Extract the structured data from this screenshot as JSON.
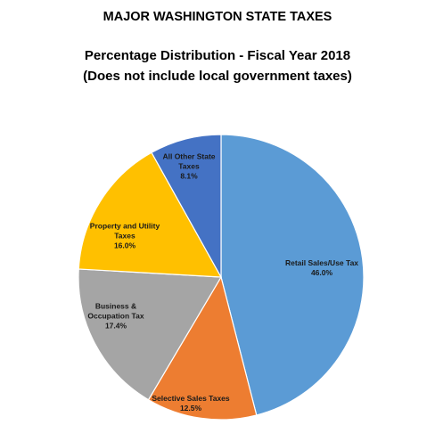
{
  "header": {
    "title": "MAJOR WASHINGTON STATE TAXES",
    "subtitle_line1": "Percentage Distribution - Fiscal Year 2018",
    "subtitle_line2": "(Does not include local government taxes)"
  },
  "chart_data": {
    "type": "pie",
    "title": "MAJOR WASHINGTON STATE TAXES",
    "subtitle": "Percentage Distribution - Fiscal Year 2018 (Does not include local government taxes)",
    "slices": [
      {
        "label": "Retail Sales/Use Tax",
        "label_lines": [
          "Retail Sales/Use Tax"
        ],
        "value": 46.0,
        "value_label": "46.0%",
        "color": "#5B9BD5"
      },
      {
        "label": "Selective Sales Taxes",
        "label_lines": [
          "Selective Sales Taxes"
        ],
        "value": 12.5,
        "value_label": "12.5%",
        "color": "#ED7D31"
      },
      {
        "label": "Business & Occupation Tax",
        "label_lines": [
          "Business &",
          "Occupation Tax"
        ],
        "value": 17.4,
        "value_label": "17.4%",
        "color": "#A5A5A5"
      },
      {
        "label": "Property and Utility Taxes",
        "label_lines": [
          "Property and Utility",
          "Taxes"
        ],
        "value": 16.0,
        "value_label": "16.0%",
        "color": "#FFC000"
      },
      {
        "label": "All Other State Taxes",
        "label_lines": [
          "All Other State",
          "Taxes"
        ],
        "value": 8.1,
        "value_label": "8.1%",
        "color": "#4472C4"
      }
    ],
    "start_angle": "12 o'clock",
    "direction": "clockwise",
    "legend": "none",
    "data_labels": "inside"
  }
}
